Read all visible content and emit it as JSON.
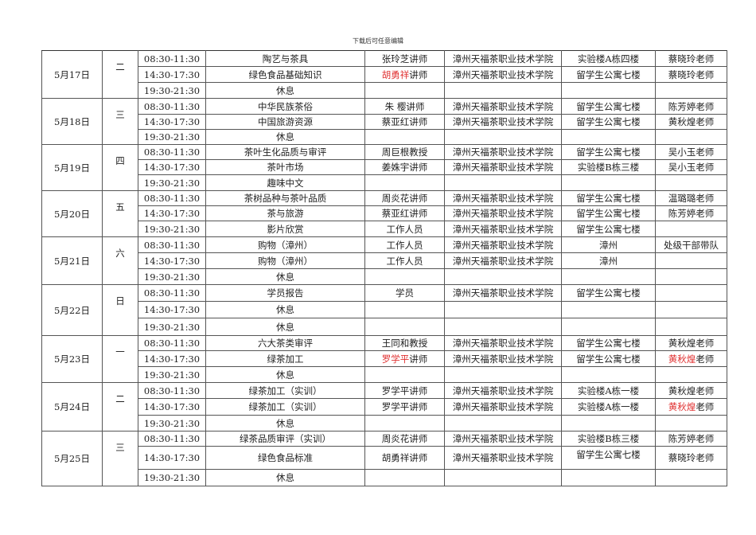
{
  "header": "下载后可任意编辑",
  "days": [
    {
      "date": "5月17日",
      "weekday": "二",
      "rows": [
        {
          "time": "08:30-11:30",
          "course": "陶艺与茶具",
          "lecturer": [
            {
              "text": "张玲芝讲师",
              "red": false
            }
          ],
          "org": "漳州天福茶职业技术学院",
          "place": "实验楼A栋四楼",
          "host": [
            {
              "text": "蔡晓玲老师",
              "red": false
            }
          ]
        },
        {
          "time": "14:30-17:30",
          "course": "绿色食品基础知识",
          "lecturer": [
            {
              "text": "胡勇祥",
              "red": true
            },
            {
              "text": "讲师",
              "red": false
            }
          ],
          "org": "漳州天福茶职业技术学院",
          "place": "留学生公寓七楼",
          "host": [
            {
              "text": "蔡晓玲老师",
              "red": false
            }
          ]
        },
        {
          "time": "19:30-21:30",
          "course": "休息",
          "lecturer": [],
          "org": "",
          "place": "",
          "host": []
        }
      ]
    },
    {
      "date": "5月18日",
      "weekday": "三",
      "rows": [
        {
          "time": "08:30-11:30",
          "course": "中华民族茶俗",
          "lecturer": [
            {
              "text": "朱  樱讲师",
              "red": false
            }
          ],
          "org": "漳州天福茶职业技术学院",
          "place": "留学生公寓七楼",
          "host": [
            {
              "text": "陈芳婷老师",
              "red": false
            }
          ]
        },
        {
          "time": "14:30-17:30",
          "course": "中国旅游资源",
          "lecturer": [
            {
              "text": "蔡亚红讲师",
              "red": false
            }
          ],
          "org": "漳州天福茶职业技术学院",
          "place": "留学生公寓七楼",
          "host": [
            {
              "text": "黄秋煌老师",
              "red": false
            }
          ]
        },
        {
          "time": "19:30-21:30",
          "course": "休息",
          "lecturer": [],
          "org": "",
          "place": "",
          "host": []
        }
      ]
    },
    {
      "date": "5月19日",
      "weekday": "四",
      "rows": [
        {
          "time": "08:30-11:30",
          "course": "茶叶生化品质与审评",
          "lecturer": [
            {
              "text": "周巨根教授",
              "red": false
            }
          ],
          "org": "漳州天福茶职业技术学院",
          "place": "留学生公寓七楼",
          "host": [
            {
              "text": "吴小玉老师",
              "red": false
            }
          ]
        },
        {
          "time": "14:30-17:30",
          "course": "茶叶市场",
          "lecturer": [
            {
              "text": "姜姝宇讲师",
              "red": false
            }
          ],
          "org": "漳州天福茶职业技术学院",
          "place": "实验楼B栋三楼",
          "host": [
            {
              "text": "吴小玉老师",
              "red": false
            }
          ]
        },
        {
          "time": "19:30-21:30",
          "course": "趣味中文",
          "lecturer": [],
          "org": "",
          "place": "",
          "host": []
        }
      ]
    },
    {
      "date": "5月20日",
      "weekday": "五",
      "rows": [
        {
          "time": "08:30-11:30",
          "course": "茶树品种与茶叶品质",
          "lecturer": [
            {
              "text": "周炎花讲师",
              "red": false
            }
          ],
          "org": "漳州天福茶职业技术学院",
          "place": "留学生公寓七楼",
          "host": [
            {
              "text": "温璐璐老师",
              "red": false
            }
          ]
        },
        {
          "time": "14:30-17:30",
          "course": "茶与旅游",
          "lecturer": [
            {
              "text": "蔡亚红讲师",
              "red": false
            }
          ],
          "org": "漳州天福茶职业技术学院",
          "place": "留学生公寓七楼",
          "host": [
            {
              "text": "陈芳婷老师",
              "red": false
            }
          ]
        },
        {
          "time": "19:30-21:30",
          "course": "影片欣赏",
          "lecturer": [
            {
              "text": "工作人员",
              "red": false
            }
          ],
          "org": "漳州天福茶职业技术学院",
          "place": "留学生公寓七楼",
          "host": []
        }
      ]
    },
    {
      "date": "5月21日",
      "weekday": "六",
      "rows": [
        {
          "time": "08:30-11:30",
          "course": "购物（漳州）",
          "lecturer": [
            {
              "text": "工作人员",
              "red": false
            }
          ],
          "org": "漳州天福茶职业技术学院",
          "place": "漳州",
          "host": [
            {
              "text": "处级干部带队",
              "red": false
            }
          ]
        },
        {
          "time": "14:30-17:30",
          "course": "购物（漳州）",
          "lecturer": [
            {
              "text": "工作人员",
              "red": false
            }
          ],
          "org": "漳州天福茶职业技术学院",
          "place": "漳州",
          "host": []
        },
        {
          "time": "19:30-21:30",
          "course": "休息",
          "lecturer": [],
          "org": "",
          "place": "",
          "host": []
        }
      ]
    },
    {
      "date": "5月22日",
      "weekday": "日",
      "rows": [
        {
          "time": "08:30-11:30",
          "course": "学员报告",
          "lecturer": [
            {
              "text": "学员",
              "red": false
            }
          ],
          "org": "漳州天福茶职业技术学院",
          "place": "留学生公寓七楼",
          "host": []
        },
        {
          "time": "14:30-17:30",
          "course": "休息",
          "lecturer": [],
          "org": "",
          "place": "",
          "host": []
        },
        {
          "time": "19:30-21:30",
          "course": "休息",
          "lecturer": [],
          "org": "",
          "place": "",
          "host": []
        }
      ]
    },
    {
      "date": "5月23日",
      "weekday": "一",
      "rows": [
        {
          "time": "08:30-11:30",
          "course": "六大茶类审评",
          "lecturer": [
            {
              "text": "王同和教授",
              "red": false
            }
          ],
          "org": "漳州天福茶职业技术学院",
          "place": "留学生公寓七楼",
          "host": [
            {
              "text": "黄秋煌老师",
              "red": false
            }
          ]
        },
        {
          "time": "14:30-17:30",
          "course": "绿茶加工",
          "lecturer": [
            {
              "text": "罗学平",
              "red": true
            },
            {
              "text": "讲师",
              "red": false
            }
          ],
          "org": "漳州天福茶职业技术学院",
          "place": "留学生公寓七楼",
          "host": [
            {
              "text": "黄秋煌",
              "red": true
            },
            {
              "text": "老师",
              "red": false
            }
          ]
        },
        {
          "time": "19:30-21:30",
          "course": "休息",
          "lecturer": [],
          "org": "",
          "place": "",
          "host": []
        }
      ]
    },
    {
      "date": "5月24日",
      "weekday": "二",
      "rows": [
        {
          "time": "08:30-11:30",
          "course": "绿茶加工（实训）",
          "lecturer": [
            {
              "text": "罗学平讲师",
              "red": false
            }
          ],
          "org": "漳州天福茶职业技术学院",
          "place": "实验楼A栋一楼",
          "host": [
            {
              "text": "黄秋煌老师",
              "red": false
            }
          ]
        },
        {
          "time": "14:30-17:30",
          "course": "绿茶加工（实训）",
          "lecturer": [
            {
              "text": "罗学平讲师",
              "red": false
            }
          ],
          "org": "漳州天福茶职业技术学院",
          "place": "实验楼A栋一楼",
          "host": [
            {
              "text": "黄秋煌",
              "red": true
            },
            {
              "text": "老师",
              "red": false
            }
          ]
        },
        {
          "time": "19:30-21:30",
          "course": "休息",
          "lecturer": [],
          "org": "",
          "place": "",
          "host": []
        }
      ]
    },
    {
      "date": "5月25日",
      "weekday": "三",
      "rows": [
        {
          "time": "08:30-11:30",
          "course": "绿茶品质审评（实训）",
          "lecturer": [
            {
              "text": "周炎花讲师",
              "red": false
            }
          ],
          "org": "漳州天福茶职业技术学院",
          "place": "实验楼B栋三楼",
          "host": [
            {
              "text": "陈芳婷老师",
              "red": false
            }
          ]
        },
        {
          "time": "14:30-17:30",
          "course": "绿色食品标准",
          "lecturer": [
            {
              "text": "胡勇祥讲师",
              "red": false
            }
          ],
          "org": "漳州天福茶职业技术学院",
          "place": "留学生公寓七楼",
          "host": [
            {
              "text": "蔡晓玲老师",
              "red": false
            }
          ]
        },
        {
          "time": "19:30-21:30",
          "course": "休息",
          "lecturer": [],
          "org": "",
          "place": "",
          "host": []
        }
      ]
    }
  ],
  "colors": {
    "highlight": "#e03030",
    "border": "#555555"
  }
}
